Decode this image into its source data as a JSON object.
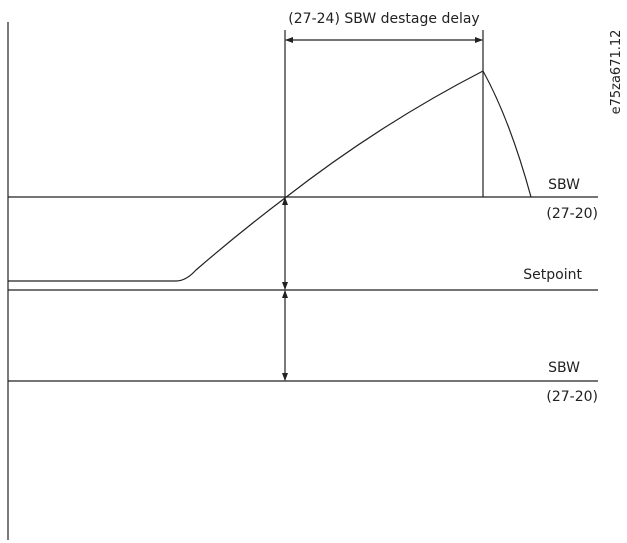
{
  "labels": {
    "delay": "(27-24) SBW destage delay",
    "sbw_upper": "SBW",
    "sbw_upper_param": "(27-20)",
    "setpoint": "Setpoint",
    "sbw_lower": "SBW",
    "sbw_lower_param": "(27-20)",
    "figure_id": "e75za671.12"
  }
}
